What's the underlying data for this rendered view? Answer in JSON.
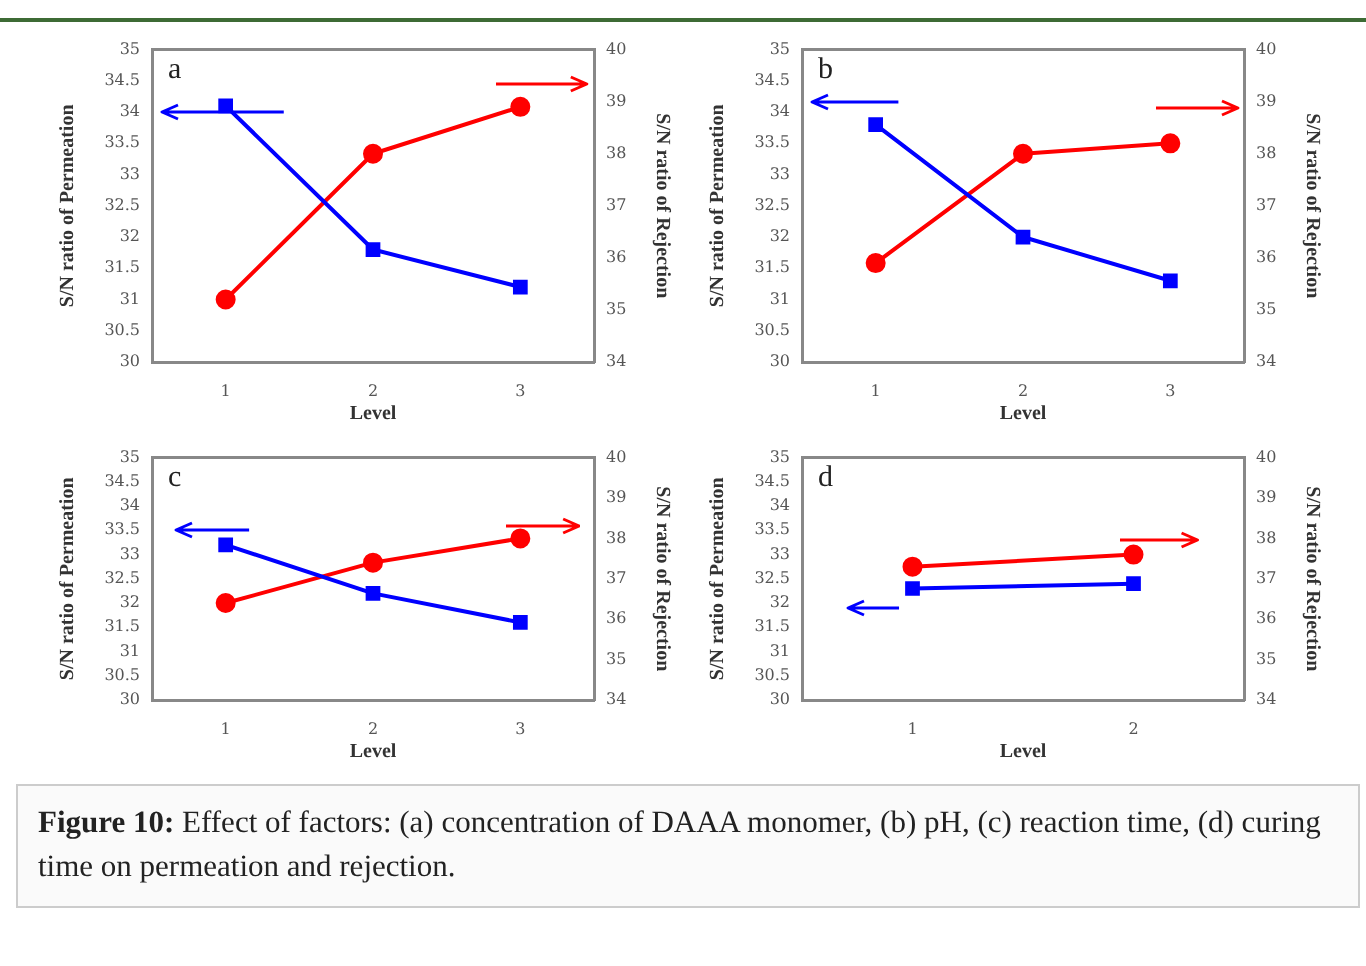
{
  "chart_data": [
    {
      "type": "line",
      "title": "a",
      "x": [
        1,
        2,
        3
      ],
      "xlim": [
        0.5,
        3.5
      ],
      "xticks": [
        1,
        2,
        3
      ],
      "xlabel": "Level",
      "ylabel": "S/N ratio of Permeation",
      "y2label": "S/N ratio of Rejection",
      "ylim": [
        30,
        35
      ],
      "yticks": [
        30,
        30.5,
        31,
        31.5,
        32,
        32.5,
        33,
        33.5,
        34,
        34.5,
        35
      ],
      "y2lim": [
        34,
        40
      ],
      "y2ticks": [
        34,
        35,
        36,
        37,
        38,
        39,
        40
      ],
      "grid": false,
      "legend": false,
      "series": [
        {
          "color": "#0000ff",
          "marker": "square",
          "values": [
            34.1,
            31.8,
            31.2
          ]
        },
        {
          "color": "#ff0000",
          "marker": "circle",
          "axis": "y2",
          "values": [
            35.2,
            38.0,
            38.9
          ]
        }
      ]
    },
    {
      "type": "line",
      "title": "b",
      "x": [
        1,
        2,
        3
      ],
      "xlim": [
        0.5,
        3.5
      ],
      "xticks": [
        1,
        2,
        3
      ],
      "xlabel": "Level",
      "ylabel": "S/N ratio of Permeation",
      "y2label": "S/N ratio of Rejection",
      "ylim": [
        30,
        35
      ],
      "yticks": [
        30,
        30.5,
        31,
        31.5,
        32,
        32.5,
        33,
        33.5,
        34,
        34.5,
        35
      ],
      "y2lim": [
        34,
        40
      ],
      "y2ticks": [
        34,
        35,
        36,
        37,
        38,
        39,
        40
      ],
      "grid": false,
      "legend": false,
      "series": [
        {
          "color": "#0000ff",
          "marker": "square",
          "values": [
            33.8,
            32.0,
            31.3
          ]
        },
        {
          "color": "#ff0000",
          "marker": "circle",
          "axis": "y2",
          "values": [
            35.9,
            38.0,
            38.2
          ]
        }
      ]
    },
    {
      "type": "line",
      "title": "c",
      "x": [
        1,
        2,
        3
      ],
      "xlim": [
        0.5,
        3.5
      ],
      "xticks": [
        1,
        2,
        3
      ],
      "xlabel": "Level",
      "ylabel": "S/N ratio of Permeation",
      "y2label": "S/N ratio of Rejection",
      "ylim": [
        30,
        35
      ],
      "yticks": [
        30,
        30.5,
        31,
        31.5,
        32,
        32.5,
        33,
        33.5,
        34,
        34.5,
        35
      ],
      "y2lim": [
        34,
        40
      ],
      "y2ticks": [
        34,
        35,
        36,
        37,
        38,
        39,
        40
      ],
      "grid": false,
      "legend": false,
      "series": [
        {
          "color": "#0000ff",
          "marker": "square",
          "values": [
            33.2,
            32.2,
            31.6
          ]
        },
        {
          "color": "#ff0000",
          "marker": "circle",
          "axis": "y2",
          "values": [
            36.4,
            37.4,
            38.0
          ]
        }
      ]
    },
    {
      "type": "line",
      "title": "d",
      "x": [
        1,
        2
      ],
      "xlim": [
        0.5,
        2.5
      ],
      "xticks": [
        1,
        2
      ],
      "xlabel": "Level",
      "ylabel": "S/N ratio of Permeation",
      "y2label": "S/N ratio of Rejection",
      "ylim": [
        30,
        35
      ],
      "yticks": [
        30,
        30.5,
        31,
        31.5,
        32,
        32.5,
        33,
        33.5,
        34,
        34.5,
        35
      ],
      "y2lim": [
        34,
        40
      ],
      "y2ticks": [
        34,
        35,
        36,
        37,
        38,
        39,
        40
      ],
      "grid": false,
      "legend": false,
      "series": [
        {
          "color": "#0000ff",
          "marker": "square",
          "values": [
            32.3,
            32.4
          ]
        },
        {
          "color": "#ff0000",
          "marker": "circle",
          "axis": "y2",
          "values": [
            37.3,
            37.6
          ]
        }
      ],
      "annotations": [
        "Figure 10: Effect of factors: (a) concentration of DAAA monomer, (b) pH, (c) reaction time, (d) curing time on permeation and rejection."
      ]
    }
  ]
}
